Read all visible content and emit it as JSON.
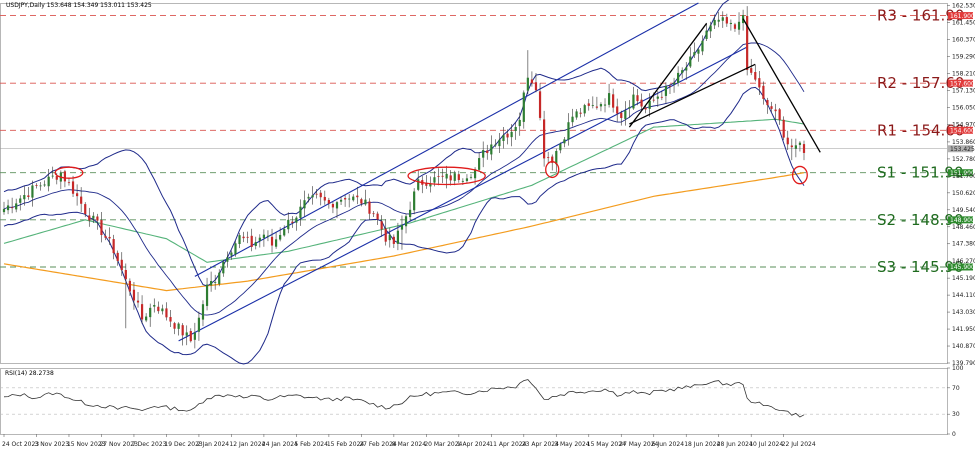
{
  "chart_data": {
    "type": "candlestick",
    "symbol_header": "USDJPY,Daily  153.648 154.349 153.011 153.425",
    "last_price": "153.425",
    "main_ylim": [
      139.79,
      162.7
    ],
    "main_y_ticks": [
      "162.530",
      "161.450",
      "160.370",
      "159.290",
      "158.210",
      "157.130",
      "156.050",
      "154.970",
      "153.860",
      "152.780",
      "151.700",
      "150.620",
      "149.540",
      "148.460",
      "147.380",
      "146.270",
      "145.190",
      "144.110",
      "143.030",
      "141.950",
      "140.870",
      "139.790"
    ],
    "x_labels": [
      {
        "i": 0,
        "t": "24 Oct 2023"
      },
      {
        "i": 8,
        "t": "3 Nov 2023"
      },
      {
        "i": 16,
        "t": "15 Nov 2023"
      },
      {
        "i": 24,
        "t": "27 Nov 2023"
      },
      {
        "i": 32,
        "t": "7 Dec 2023"
      },
      {
        "i": 40,
        "t": "19 Dec 2023"
      },
      {
        "i": 48,
        "t": "2 Jan 2024"
      },
      {
        "i": 56,
        "t": "12 Jan 2024"
      },
      {
        "i": 64,
        "t": "24 Jan 2024"
      },
      {
        "i": 72,
        "t": "5 Feb 2024"
      },
      {
        "i": 80,
        "t": "15 Feb 2024"
      },
      {
        "i": 88,
        "t": "27 Feb 2024"
      },
      {
        "i": 96,
        "t": "8 Mar 2024"
      },
      {
        "i": 104,
        "t": "20 Mar 2024"
      },
      {
        "i": 112,
        "t": "1 Apr 2024"
      },
      {
        "i": 120,
        "t": "11 Apr 2024"
      },
      {
        "i": 128,
        "t": "23 Apr 2024"
      },
      {
        "i": 136,
        "t": "3 May 2024"
      },
      {
        "i": 144,
        "t": "15 May 2024"
      },
      {
        "i": 152,
        "t": "27 May 2024"
      },
      {
        "i": 160,
        "t": "6 Jun 2024"
      },
      {
        "i": 168,
        "t": "18 Jun 2024"
      },
      {
        "i": 176,
        "t": "28 Jun 2024"
      },
      {
        "i": 184,
        "t": "10 Jul 2024"
      },
      {
        "i": 192,
        "t": "22 Jul 2024"
      }
    ],
    "anchors": [
      [
        0,
        149.6
      ],
      [
        4,
        150.3
      ],
      [
        8,
        151.0
      ],
      [
        12,
        151.6
      ],
      [
        14,
        151.9
      ],
      [
        17,
        150.8
      ],
      [
        20,
        149.5
      ],
      [
        24,
        148.2
      ],
      [
        27,
        147.0
      ],
      [
        30,
        145.0
      ],
      [
        32,
        144.0
      ],
      [
        34,
        142.6
      ],
      [
        37,
        143.6
      ],
      [
        40,
        142.8
      ],
      [
        43,
        142.0
      ],
      [
        46,
        141.2
      ],
      [
        48,
        142.6
      ],
      [
        50,
        144.6
      ],
      [
        52,
        145.2
      ],
      [
        55,
        146.8
      ],
      [
        58,
        147.8
      ],
      [
        61,
        147.3
      ],
      [
        64,
        148.0
      ],
      [
        66,
        147.3
      ],
      [
        69,
        148.5
      ],
      [
        72,
        149.2
      ],
      [
        74,
        149.9
      ],
      [
        77,
        150.3
      ],
      [
        80,
        149.9
      ],
      [
        84,
        150.4
      ],
      [
        88,
        150.1
      ],
      [
        91,
        149.4
      ],
      [
        94,
        147.8
      ],
      [
        96,
        147.4
      ],
      [
        98,
        148.5
      ],
      [
        100,
        149.8
      ],
      [
        102,
        151.2
      ],
      [
        104,
        151.4
      ],
      [
        107,
        151.5
      ],
      [
        110,
        151.6
      ],
      [
        113,
        151.7
      ],
      [
        116,
        152.1
      ],
      [
        118,
        153.1
      ],
      [
        121,
        154.0
      ],
      [
        125,
        154.6
      ],
      [
        127,
        155.4
      ],
      [
        129,
        158.2
      ],
      [
        131,
        157.5
      ],
      [
        133,
        153.1
      ],
      [
        135,
        152.8
      ],
      [
        137,
        153.8
      ],
      [
        140,
        155.5
      ],
      [
        143,
        155.9
      ],
      [
        146,
        156.2
      ],
      [
        149,
        156.7
      ],
      [
        152,
        155.6
      ],
      [
        155,
        156.8
      ],
      [
        158,
        155.9
      ],
      [
        161,
        156.8
      ],
      [
        164,
        157.3
      ],
      [
        167,
        158.3
      ],
      [
        170,
        159.3
      ],
      [
        173,
        160.8
      ],
      [
        176,
        161.6
      ],
      [
        178,
        161.3
      ],
      [
        180,
        161.1
      ],
      [
        181,
        161.8
      ],
      [
        182,
        161.6
      ],
      [
        183,
        158.4
      ],
      [
        185,
        157.9
      ],
      [
        187,
        156.4
      ],
      [
        189,
        156.0
      ],
      [
        191,
        155.1
      ],
      [
        193,
        153.8
      ],
      [
        195,
        153.3
      ],
      [
        196,
        153.7
      ],
      [
        197,
        153.4
      ]
    ],
    "spikes": [
      [
        129,
        159.7,
        "high"
      ],
      [
        30,
        142.0,
        "low"
      ],
      [
        44,
        140.9,
        "low"
      ],
      [
        98,
        147.0,
        "low"
      ],
      [
        194,
        152.7,
        "low"
      ]
    ],
    "ma200_points": [
      [
        0,
        146.1
      ],
      [
        40,
        144.4
      ],
      [
        60,
        145.0
      ],
      [
        96,
        146.6
      ],
      [
        130,
        148.5
      ],
      [
        160,
        150.4
      ],
      [
        190,
        151.6
      ],
      [
        197,
        151.9
      ]
    ],
    "ma100_points": [
      [
        0,
        147.4
      ],
      [
        20,
        148.9
      ],
      [
        40,
        147.7
      ],
      [
        50,
        146.2
      ],
      [
        70,
        146.9
      ],
      [
        100,
        148.7
      ],
      [
        130,
        151.1
      ],
      [
        160,
        154.8
      ],
      [
        190,
        155.3
      ],
      [
        197,
        155.0
      ]
    ],
    "resistance_support": [
      {
        "label": "R3 - 161.90",
        "level": 161.9,
        "badge": "161.900",
        "kind": "R"
      },
      {
        "label": "R2 - 157.60",
        "level": 157.6,
        "badge": "157.600",
        "kind": "R"
      },
      {
        "label": "R1 - 154.60",
        "level": 154.6,
        "badge": "154.600",
        "kind": "R"
      },
      {
        "label": "S1 - 151.90",
        "level": 151.9,
        "badge": "151.900",
        "kind": "S"
      },
      {
        "label": "S2 - 148.90",
        "level": 148.9,
        "badge": "148.900",
        "kind": "S"
      },
      {
        "label": "S3 - 145.90",
        "level": 145.9,
        "badge": "145.900",
        "kind": "S"
      }
    ],
    "channel_lines": [
      {
        "p1": [
          47,
          145.3
        ],
        "p2": [
          171,
          162.7
        ]
      },
      {
        "p1": [
          43,
          141.2
        ],
        "p2": [
          183,
          159.9
        ]
      }
    ],
    "black_lines": [
      [
        [
          154,
          154.8
        ],
        [
          173,
          161.4
        ]
      ],
      [
        [
          154,
          155.0
        ],
        [
          185,
          158.8
        ]
      ],
      [
        [
          182,
          161.7
        ],
        [
          201,
          153.2
        ]
      ]
    ],
    "ellipses": [
      {
        "cx": 16,
        "cy": 151.9,
        "rx": 3.4,
        "ry": 0.35
      },
      {
        "cx": 109,
        "cy": 151.7,
        "rx": 9.5,
        "ry": 0.55
      },
      {
        "cx": 135,
        "cy": 152.1,
        "rx": 1.6,
        "ry": 0.5
      },
      {
        "cx": 196,
        "cy": 151.75,
        "rx": 1.8,
        "ry": 0.55
      }
    ],
    "rsi": {
      "label": "RSI(14) 28.2738",
      "ylim": [
        0,
        100
      ],
      "ticks": [
        "100",
        "70",
        "30",
        "0"
      ],
      "anchors": [
        [
          0,
          55
        ],
        [
          4,
          60
        ],
        [
          8,
          55
        ],
        [
          12,
          62
        ],
        [
          15,
          58
        ],
        [
          18,
          50
        ],
        [
          21,
          45
        ],
        [
          25,
          42
        ],
        [
          28,
          38
        ],
        [
          31,
          40
        ],
        [
          34,
          35
        ],
        [
          37,
          43
        ],
        [
          40,
          40
        ],
        [
          43,
          38
        ],
        [
          46,
          34
        ],
        [
          48,
          45
        ],
        [
          50,
          55
        ],
        [
          53,
          58
        ],
        [
          56,
          60
        ],
        [
          59,
          55
        ],
        [
          62,
          57
        ],
        [
          65,
          52
        ],
        [
          68,
          56
        ],
        [
          72,
          58
        ],
        [
          76,
          55
        ],
        [
          80,
          52
        ],
        [
          84,
          54
        ],
        [
          88,
          50
        ],
        [
          91,
          45
        ],
        [
          94,
          40
        ],
        [
          97,
          45
        ],
        [
          100,
          55
        ],
        [
          103,
          60
        ],
        [
          107,
          62
        ],
        [
          110,
          63
        ],
        [
          114,
          62
        ],
        [
          118,
          66
        ],
        [
          122,
          70
        ],
        [
          126,
          72
        ],
        [
          129,
          85
        ],
        [
          131,
          70
        ],
        [
          133,
          52
        ],
        [
          136,
          58
        ],
        [
          140,
          64
        ],
        [
          144,
          65
        ],
        [
          148,
          68
        ],
        [
          151,
          60
        ],
        [
          155,
          64
        ],
        [
          158,
          60
        ],
        [
          161,
          65
        ],
        [
          164,
          67
        ],
        [
          167,
          70
        ],
        [
          170,
          72
        ],
        [
          173,
          78
        ],
        [
          176,
          78
        ],
        [
          179,
          75
        ],
        [
          182,
          77
        ],
        [
          183,
          52
        ],
        [
          185,
          49
        ],
        [
          187,
          42
        ],
        [
          189,
          42
        ],
        [
          192,
          35
        ],
        [
          195,
          29
        ],
        [
          197,
          28
        ]
      ]
    }
  }
}
